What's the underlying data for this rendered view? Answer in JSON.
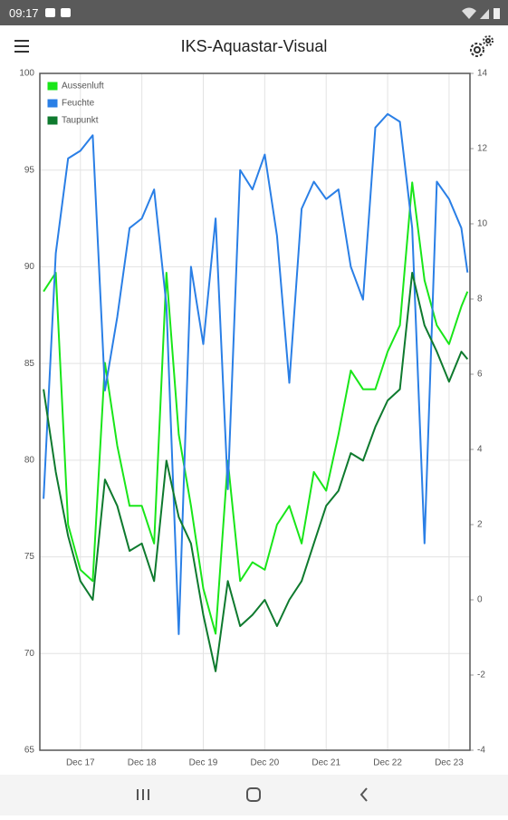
{
  "status_bar": {
    "time": "09:17"
  },
  "app_bar": {
    "title": "IKS-Aquastar-Visual"
  },
  "chart_data": {
    "type": "line",
    "x": [
      16.4,
      16.6,
      16.8,
      17.0,
      17.2,
      17.4,
      17.6,
      17.8,
      18.0,
      18.2,
      18.4,
      18.6,
      18.8,
      19.0,
      19.2,
      19.4,
      19.6,
      19.8,
      20.0,
      20.2,
      20.4,
      20.6,
      20.8,
      21.0,
      21.2,
      21.4,
      21.6,
      21.8,
      22.0,
      22.2,
      22.4,
      22.6,
      22.8,
      23.0,
      23.2,
      23.3
    ],
    "series": [
      {
        "name": "Aussenluft",
        "color": "#19e619",
        "axis": "y2",
        "values": [
          8.2,
          8.7,
          2.0,
          0.8,
          0.5,
          6.3,
          4.1,
          2.5,
          2.5,
          1.5,
          8.7,
          4.4,
          2.5,
          0.3,
          -0.9,
          3.7,
          0.5,
          1.0,
          0.8,
          2.0,
          2.5,
          1.5,
          3.4,
          2.9,
          4.4,
          6.1,
          5.6,
          5.6,
          6.6,
          7.3,
          11.1,
          8.5,
          7.3,
          6.8,
          7.8,
          8.2
        ]
      },
      {
        "name": "Feuchte",
        "color": "#2a7fe6",
        "axis": "y",
        "values": [
          78,
          90.7,
          95.6,
          96,
          96.8,
          83.6,
          87.4,
          92,
          92.5,
          94,
          88,
          71,
          90,
          86,
          92.5,
          78.5,
          95,
          94,
          95.8,
          91.6,
          84,
          93,
          94.4,
          93.5,
          94,
          90,
          88.3,
          97.2,
          97.9,
          97.5,
          92,
          75.7,
          94.4,
          93.5,
          92,
          89.7
        ]
      },
      {
        "name": "Taupunkt",
        "color": "#0e7a2e",
        "axis": "y2",
        "values": [
          5.6,
          3.4,
          1.7,
          0.5,
          0.0,
          3.2,
          2.5,
          1.3,
          1.5,
          0.5,
          3.7,
          2.2,
          1.5,
          -0.4,
          -1.9,
          0.5,
          -0.7,
          -0.4,
          0.0,
          -0.7,
          0.0,
          0.5,
          1.5,
          2.5,
          2.9,
          3.9,
          3.7,
          4.6,
          5.3,
          5.6,
          8.7,
          7.3,
          6.6,
          5.8,
          6.6,
          6.4
        ]
      }
    ],
    "xlim": [
      16.34,
      23.34
    ],
    "xticks": [
      {
        "value": 17,
        "label": "Dec 17"
      },
      {
        "value": 18,
        "label": "Dec 18"
      },
      {
        "value": 19,
        "label": "Dec 19"
      },
      {
        "value": 20,
        "label": "Dec 20"
      },
      {
        "value": 21,
        "label": "Dec 21"
      },
      {
        "value": 22,
        "label": "Dec 22"
      },
      {
        "value": 23,
        "label": "Dec 23"
      }
    ],
    "ylim": [
      65,
      100
    ],
    "yticks": [
      65,
      70,
      75,
      80,
      85,
      90,
      95,
      100
    ],
    "y2lim": [
      -4,
      14
    ],
    "y2ticks": [
      -4,
      -2,
      0,
      2,
      4,
      6,
      8,
      10,
      12,
      14
    ],
    "grid": true,
    "legend": "top-left"
  }
}
